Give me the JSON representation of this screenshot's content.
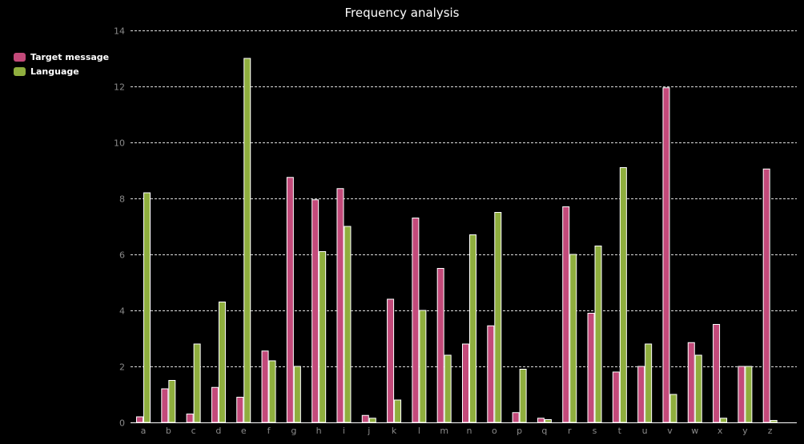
{
  "chart_data": {
    "type": "bar",
    "title": "Frequency analysis",
    "categories": [
      "a",
      "b",
      "c",
      "d",
      "e",
      "f",
      "g",
      "h",
      "i",
      "j",
      "k",
      "l",
      "m",
      "n",
      "o",
      "p",
      "q",
      "r",
      "s",
      "t",
      "u",
      "v",
      "w",
      "x",
      "y",
      "z"
    ],
    "series": [
      {
        "name": "Target message",
        "color": "#c34a7a",
        "values": [
          0.2,
          1.2,
          0.3,
          1.25,
          0.9,
          2.55,
          8.75,
          7.95,
          8.35,
          0.25,
          4.4,
          7.3,
          5.5,
          2.8,
          3.45,
          0.35,
          0.15,
          7.7,
          3.9,
          1.8,
          2.0,
          11.95,
          2.85,
          3.5,
          2.0,
          9.05
        ]
      },
      {
        "name": "Language",
        "color": "#8fae3e",
        "values": [
          8.2,
          1.5,
          2.8,
          4.3,
          13.0,
          2.2,
          2.0,
          6.1,
          7.0,
          0.15,
          0.8,
          4.0,
          2.4,
          6.7,
          7.5,
          1.9,
          0.1,
          6.0,
          6.3,
          9.1,
          2.8,
          1.0,
          2.4,
          0.15,
          2.0,
          0.07
        ]
      }
    ],
    "ylim": [
      0,
      14
    ],
    "yticks": [
      0,
      2,
      4,
      6,
      8,
      10,
      12,
      14
    ],
    "grid": true,
    "legend_position": "top-left"
  }
}
